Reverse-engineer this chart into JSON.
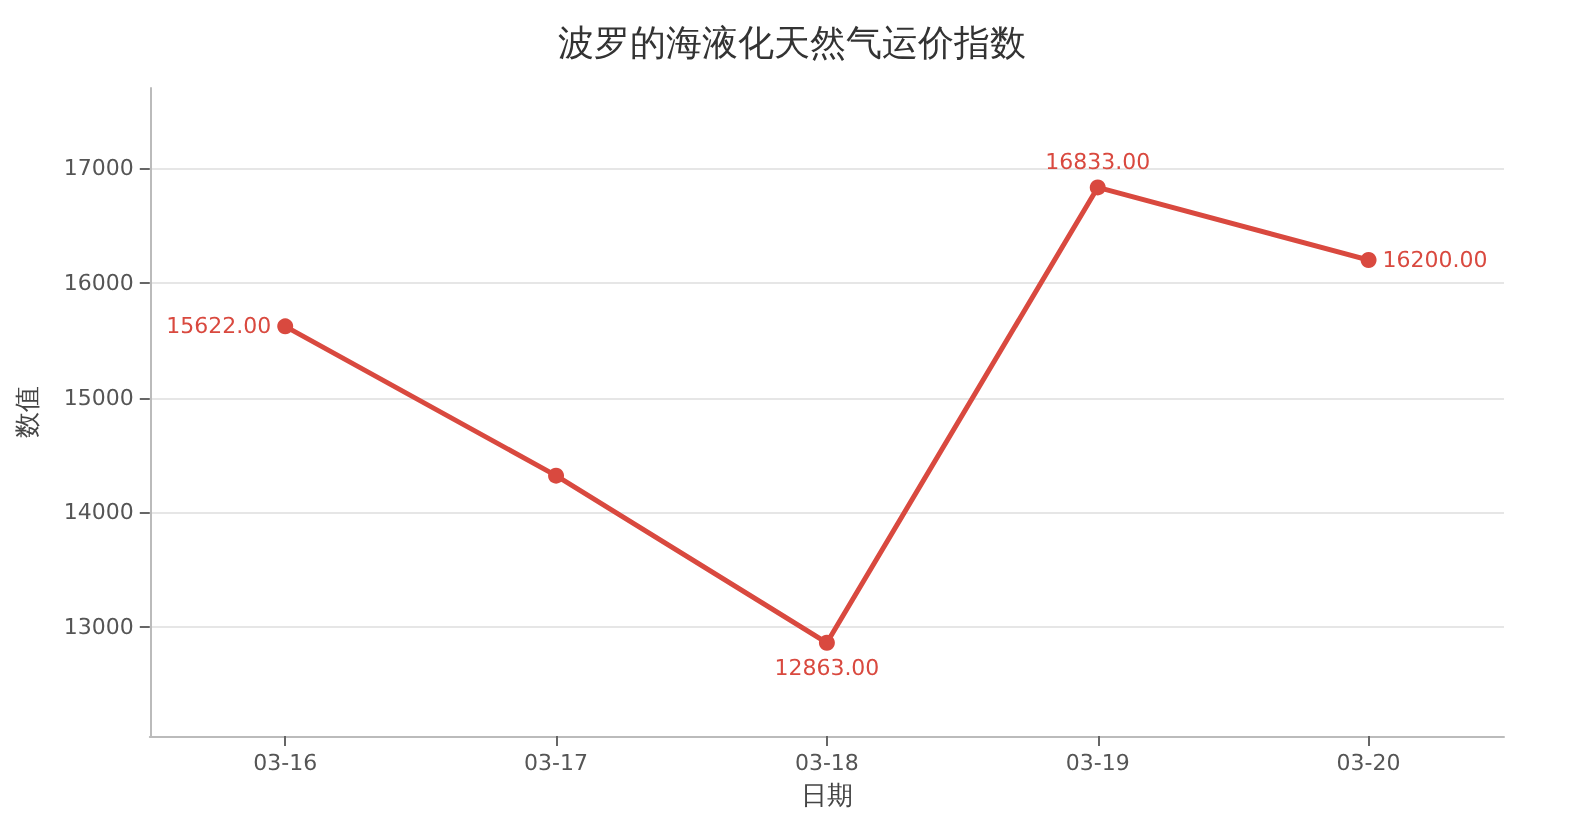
{
  "chart_data": {
    "type": "line",
    "title": "波罗的海液化天然气运价指数",
    "xlabel": "日期",
    "ylabel": "数值",
    "categories": [
      "03-16",
      "03-17",
      "03-18",
      "03-19",
      "03-20"
    ],
    "series": [
      {
        "color": "#d9493f",
        "values": [
          15622,
          14320,
          12863,
          16833,
          16200
        ],
        "value_labels": [
          "15622.00",
          null,
          "12863.00",
          "16833.00",
          "16200.00"
        ]
      }
    ],
    "ylim": [
      12050,
      17700
    ],
    "yticks": [
      13000,
      14000,
      15000,
      16000,
      17000
    ],
    "grid": "y",
    "marker": "circle",
    "line_style": "solid"
  }
}
